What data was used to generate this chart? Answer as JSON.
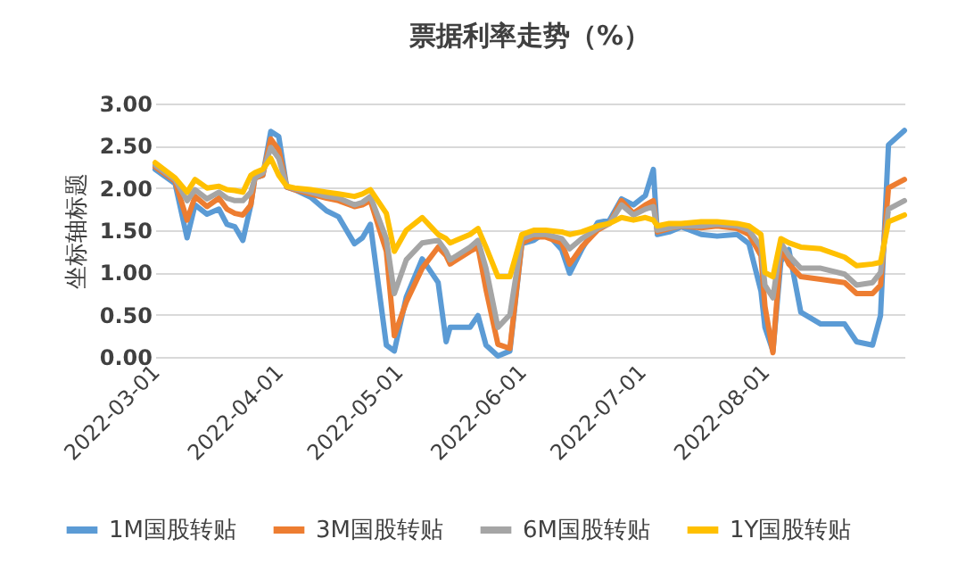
{
  "chart_data": {
    "type": "line",
    "title": "票据利率走势（%）",
    "ylabel": "坐标轴标题",
    "x": [
      "2022-03-01",
      "2022-03-06",
      "2022-03-09",
      "2022-03-11",
      "2022-03-14",
      "2022-03-17",
      "2022-03-19",
      "2022-03-21",
      "2022-03-23",
      "2022-03-25",
      "2022-03-26",
      "2022-03-28",
      "2022-03-30",
      "2022-04-01",
      "2022-04-03",
      "2022-04-05",
      "2022-04-09",
      "2022-04-13",
      "2022-04-16",
      "2022-04-20",
      "2022-04-22",
      "2022-04-24",
      "2022-04-28",
      "2022-04-30",
      "2022-05-03",
      "2022-05-07",
      "2022-05-11",
      "2022-05-13",
      "2022-05-14",
      "2022-05-19",
      "2022-05-21",
      "2022-05-23",
      "2022-05-26",
      "2022-05-29",
      "2022-06-01",
      "2022-06-04",
      "2022-06-07",
      "2022-06-11",
      "2022-06-13",
      "2022-06-16",
      "2022-06-20",
      "2022-06-23",
      "2022-06-26",
      "2022-06-29",
      "2022-07-02",
      "2022-07-04",
      "2022-07-05",
      "2022-07-08",
      "2022-07-11",
      "2022-07-16",
      "2022-07-20",
      "2022-07-25",
      "2022-07-28",
      "2022-07-31",
      "2022-08-01",
      "2022-08-03",
      "2022-08-05",
      "2022-08-07",
      "2022-08-10",
      "2022-08-15",
      "2022-08-21",
      "2022-08-24",
      "2022-08-28",
      "2022-08-30",
      "2022-09-01",
      "2022-09-05"
    ],
    "series": [
      {
        "name": "1M国股转贴",
        "color": "#5b9bd5",
        "values": [
          2.22,
          2.05,
          1.41,
          1.8,
          1.69,
          1.75,
          1.57,
          1.54,
          1.38,
          1.8,
          2.12,
          2.15,
          2.67,
          2.61,
          2.01,
          1.98,
          1.89,
          1.73,
          1.66,
          1.34,
          1.41,
          1.57,
          0.14,
          0.07,
          0.71,
          1.16,
          0.88,
          0.18,
          0.35,
          0.35,
          0.49,
          0.14,
          0.01,
          0.07,
          1.34,
          1.38,
          1.48,
          1.27,
          0.99,
          1.27,
          1.59,
          1.62,
          1.87,
          1.8,
          1.91,
          2.22,
          1.45,
          1.48,
          1.54,
          1.45,
          1.43,
          1.45,
          1.34,
          0.78,
          0.35,
          0.07,
          1.13,
          1.27,
          0.53,
          0.39,
          0.39,
          0.18,
          0.14,
          0.49,
          2.51,
          2.68
        ]
      },
      {
        "name": "3M国股转贴",
        "color": "#ed7d31",
        "values": [
          2.25,
          2.08,
          1.62,
          1.9,
          1.78,
          1.88,
          1.75,
          1.7,
          1.68,
          1.8,
          2.12,
          2.15,
          2.58,
          2.45,
          2.01,
          1.98,
          1.93,
          1.88,
          1.85,
          1.78,
          1.8,
          1.85,
          1.25,
          0.25,
          0.65,
          1.05,
          1.3,
          1.2,
          1.1,
          1.25,
          1.3,
          0.8,
          0.15,
          0.1,
          1.35,
          1.42,
          1.42,
          1.35,
          1.1,
          1.3,
          1.5,
          1.58,
          1.85,
          1.7,
          1.8,
          1.85,
          1.48,
          1.52,
          1.55,
          1.53,
          1.55,
          1.52,
          1.45,
          1.2,
          0.6,
          0.05,
          1.3,
          1.1,
          0.95,
          0.92,
          0.88,
          0.75,
          0.75,
          0.85,
          2.0,
          2.1
        ]
      },
      {
        "name": "6M国股转贴",
        "color": "#a5a5a5",
        "values": [
          2.27,
          2.1,
          1.85,
          1.98,
          1.87,
          1.95,
          1.88,
          1.85,
          1.85,
          1.95,
          2.12,
          2.18,
          2.48,
          2.35,
          2.02,
          1.99,
          1.95,
          1.9,
          1.88,
          1.8,
          1.83,
          1.9,
          1.4,
          0.75,
          1.15,
          1.35,
          1.38,
          1.25,
          1.15,
          1.3,
          1.38,
          1.05,
          0.35,
          0.5,
          1.4,
          1.45,
          1.45,
          1.4,
          1.28,
          1.4,
          1.52,
          1.58,
          1.8,
          1.68,
          1.75,
          1.78,
          1.5,
          1.53,
          1.55,
          1.55,
          1.57,
          1.55,
          1.5,
          1.3,
          0.85,
          0.7,
          1.35,
          1.2,
          1.05,
          1.05,
          0.98,
          0.85,
          0.88,
          1.0,
          1.75,
          1.85
        ]
      },
      {
        "name": "1Y国股转贴",
        "color": "#ffc000",
        "values": [
          2.3,
          2.12,
          1.95,
          2.1,
          2.0,
          2.02,
          1.98,
          1.97,
          1.95,
          2.15,
          2.18,
          2.22,
          2.35,
          2.15,
          2.02,
          2.0,
          1.98,
          1.95,
          1.93,
          1.9,
          1.93,
          1.98,
          1.7,
          1.25,
          1.5,
          1.65,
          1.45,
          1.4,
          1.35,
          1.45,
          1.52,
          1.3,
          0.95,
          0.95,
          1.45,
          1.5,
          1.5,
          1.48,
          1.45,
          1.48,
          1.55,
          1.58,
          1.65,
          1.62,
          1.65,
          1.62,
          1.55,
          1.58,
          1.58,
          1.6,
          1.6,
          1.58,
          1.55,
          1.45,
          1.0,
          0.95,
          1.4,
          1.35,
          1.3,
          1.28,
          1.18,
          1.08,
          1.1,
          1.12,
          1.6,
          1.68
        ]
      }
    ],
    "xlim": [
      "2022-03-01",
      "2022-09-05"
    ],
    "xticks": [
      "2022-03-01",
      "2022-04-01",
      "2022-05-01",
      "2022-06-01",
      "2022-07-01",
      "2022-08-01"
    ],
    "ylim": [
      0,
      3
    ],
    "yticks": [
      {
        "value": 0,
        "label": "0.00"
      },
      {
        "value": 0.5,
        "label": "0.50"
      },
      {
        "value": 1,
        "label": "1.00"
      },
      {
        "value": 1.5,
        "label": "1.50"
      },
      {
        "value": 2,
        "label": "2.00"
      },
      {
        "value": 2.5,
        "label": "2.50"
      },
      {
        "value": 3,
        "label": "3.00"
      }
    ],
    "grid": "y",
    "legend": "bottom",
    "marker": "none",
    "line_style": "solid"
  }
}
